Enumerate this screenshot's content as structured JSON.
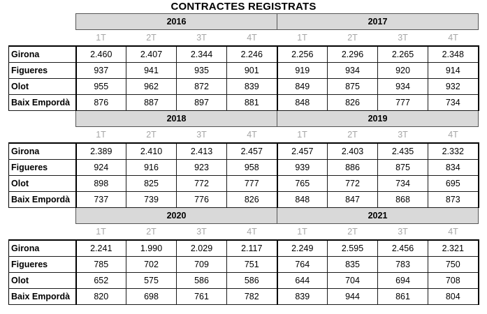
{
  "title": "CONTRACTES REGISTRATS",
  "quarters": [
    "1T",
    "2T",
    "3T",
    "4T"
  ],
  "blocks": [
    {
      "years": [
        "2016",
        "2017"
      ],
      "rows": [
        {
          "name": "Girona",
          "values": [
            "2.460",
            "2.407",
            "2.344",
            "2.246",
            "2.256",
            "2.296",
            "2.265",
            "2.348"
          ]
        },
        {
          "name": "Figueres",
          "values": [
            "937",
            "941",
            "935",
            "901",
            "919",
            "934",
            "920",
            "914"
          ]
        },
        {
          "name": "Olot",
          "values": [
            "955",
            "962",
            "872",
            "839",
            "849",
            "875",
            "934",
            "932"
          ]
        },
        {
          "name": "Baix Empordà",
          "values": [
            "876",
            "887",
            "897",
            "881",
            "848",
            "826",
            "777",
            "734"
          ]
        }
      ]
    },
    {
      "years": [
        "2018",
        "2019"
      ],
      "rows": [
        {
          "name": "Girona",
          "values": [
            "2.389",
            "2.410",
            "2.413",
            "2.457",
            "2.457",
            "2.403",
            "2.435",
            "2.332"
          ]
        },
        {
          "name": "Figueres",
          "values": [
            "924",
            "916",
            "923",
            "958",
            "939",
            "886",
            "875",
            "834"
          ]
        },
        {
          "name": "Olot",
          "values": [
            "898",
            "825",
            "772",
            "777",
            "765",
            "772",
            "734",
            "695"
          ]
        },
        {
          "name": "Baix Empordà",
          "values": [
            "737",
            "739",
            "776",
            "826",
            "848",
            "847",
            "868",
            "873"
          ]
        }
      ]
    },
    {
      "years": [
        "2020",
        "2021"
      ],
      "rows": [
        {
          "name": "Girona",
          "values": [
            "2.241",
            "1.990",
            "2.029",
            "2.117",
            "2.249",
            "2.595",
            "2.456",
            "2.321"
          ]
        },
        {
          "name": "Figueres",
          "values": [
            "785",
            "702",
            "709",
            "751",
            "764",
            "835",
            "783",
            "750"
          ]
        },
        {
          "name": "Olot",
          "values": [
            "652",
            "575",
            "586",
            "586",
            "644",
            "704",
            "694",
            "708"
          ]
        },
        {
          "name": "Baix Empordà",
          "values": [
            "820",
            "698",
            "761",
            "782",
            "839",
            "944",
            "861",
            "804"
          ]
        }
      ]
    }
  ]
}
